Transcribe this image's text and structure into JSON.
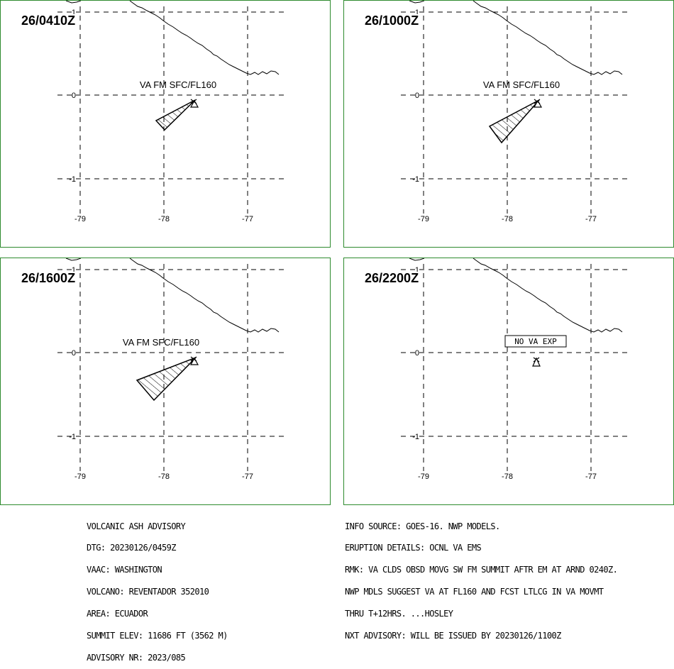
{
  "panels": [
    {
      "time": "26/0410Z",
      "label": "VA FM SFC/FL160",
      "plume": "small"
    },
    {
      "time": "26/1000Z",
      "label": "VA FM SFC/FL160",
      "plume": "medium"
    },
    {
      "time": "26/1600Z",
      "label": "VA FM SFC/FL160",
      "plume": "large"
    },
    {
      "time": "26/2200Z",
      "label": "NO VA EXP",
      "plume": "none"
    }
  ],
  "axis": {
    "lon_ticks": [
      "-79",
      "-78",
      "-77"
    ],
    "lat_ticks": [
      "1",
      "0",
      "-1"
    ]
  },
  "advisory_left": [
    "VOLCANIC ASH ADVISORY",
    "DTG: 20230126/0459Z",
    "VAAC: WASHINGTON",
    "VOLCANO: REVENTADOR 352010",
    "AREA: ECUADOR",
    "SUMMIT ELEV: 11686 FT (3562 M)",
    "ADVISORY NR: 2023/085"
  ],
  "advisory_right": [
    "INFO SOURCE: GOES-16. NWP MODELS.",
    "ERUPTION DETAILS: OCNL VA EMS",
    "RMK: VA CLDS OBSD MOVG SW FM SUMMIT AFTR EM AT ARND 0240Z.",
    "NWP MDLS SUGGEST VA AT FL160 AND FCST LTLCG IN VA MOVMT",
    "THRU T+12HRS. ...HOSLEY",
    "NXT ADVISORY: WILL BE ISSUED BY 20230126/1100Z"
  ],
  "colors": {
    "border": "#2e8b2e",
    "ink": "#000000"
  }
}
